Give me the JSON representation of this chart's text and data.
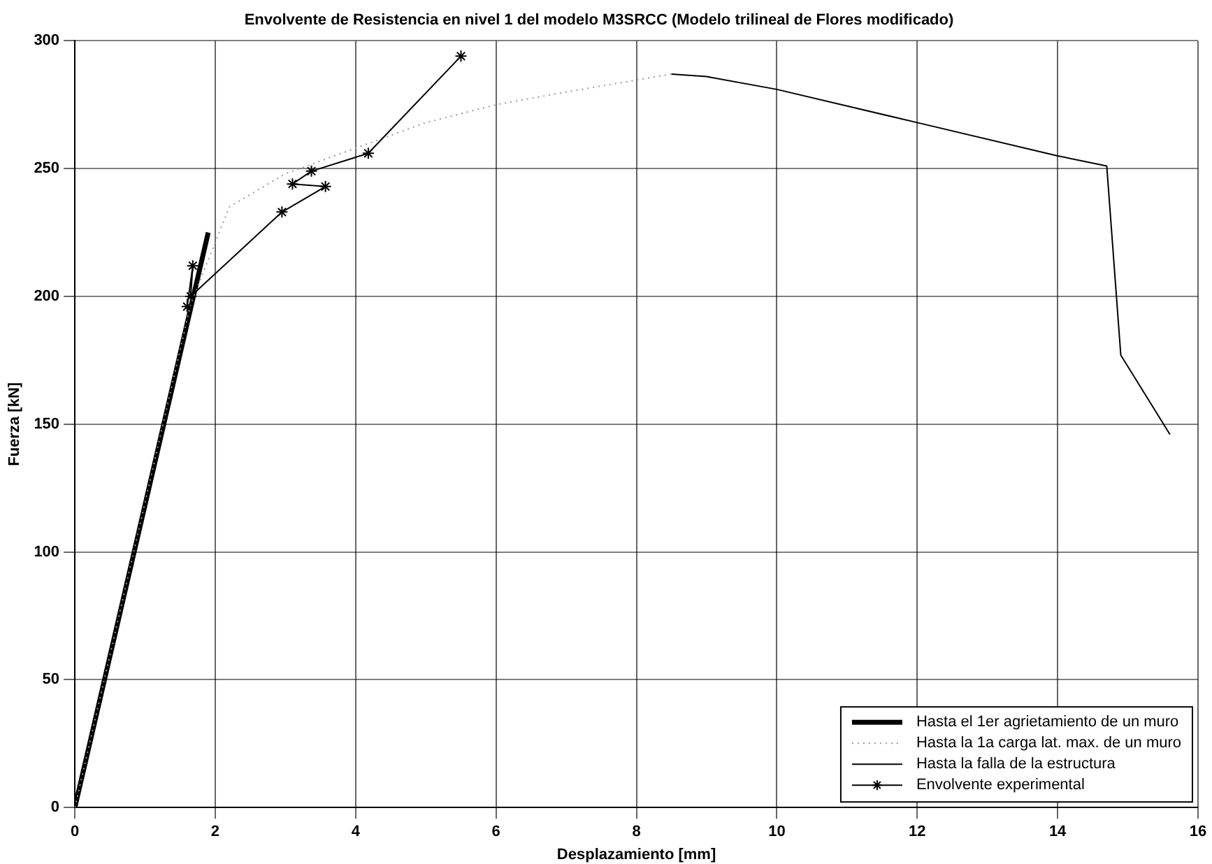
{
  "chart_data": {
    "type": "line",
    "title": "Envolvente de Resistencia en nivel 1 del modelo M3SRCC (Modelo trilineal de Flores modificado)",
    "xlabel": "Desplazamiento [mm]",
    "ylabel": "Fuerza [kN]",
    "xlim": [
      0,
      16
    ],
    "xticks": [
      0,
      2,
      4,
      6,
      8,
      10,
      12,
      14,
      16
    ],
    "ylim": [
      0,
      300
    ],
    "yticks": [
      0,
      50,
      100,
      150,
      200,
      250,
      300
    ],
    "grid": true,
    "legend": "bottom right",
    "series": [
      {
        "name": "Hasta el 1er agrietamiento de un muro",
        "color": "#000000",
        "x": [
          0,
          1.9
        ],
        "values": [
          0,
          225
        ],
        "marker": "none",
        "line_style": "solid"
      },
      {
        "name": "Hasta la 1a carga lat. max. de un muro",
        "color": "#9a9a9a",
        "x": [
          0,
          1.65,
          2.2,
          3,
          4,
          5,
          6,
          7,
          8.5
        ],
        "values": [
          0,
          197,
          235,
          248,
          258,
          268,
          275,
          280,
          287
        ],
        "marker": "none",
        "line_style": "dotted"
      },
      {
        "name": "Hasta la falla de la estructura",
        "color": "#000000",
        "x": [
          8.5,
          9,
          10,
          12,
          14,
          14.7,
          14.9,
          15.6
        ],
        "values": [
          287,
          286,
          281,
          268,
          255,
          251,
          177,
          146
        ],
        "marker": "none",
        "line_style": "solid"
      },
      {
        "name": "Envolvente experimental",
        "color": "#000000",
        "x": [
          1.6,
          1.68,
          1.65,
          2.95,
          3.57,
          3.1,
          3.37,
          4.18,
          5.5
        ],
        "values": [
          196,
          212,
          200,
          233,
          243,
          244,
          249,
          256,
          294
        ],
        "marker": "cross",
        "line_style": "solid"
      }
    ]
  }
}
